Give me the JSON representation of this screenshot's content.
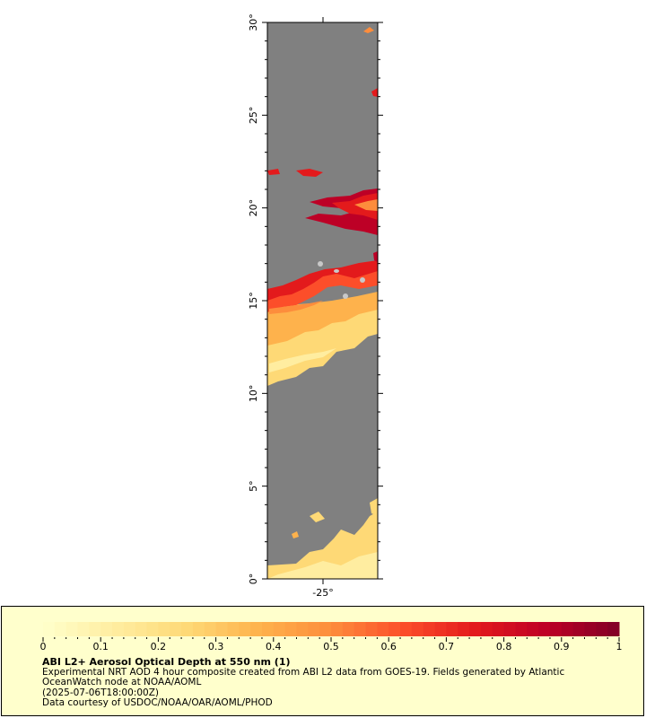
{
  "map": {
    "lat_labels": [
      "0°",
      "5°",
      "10°",
      "15°",
      "20°",
      "25°",
      "30°"
    ],
    "lon_label": "-25°",
    "land_mask_color": "#808080",
    "border_color": "#000000"
  },
  "colorbar": {
    "tick_labels": [
      "0",
      "0.1",
      "0.2",
      "0.3",
      "0.4",
      "0.5",
      "0.6",
      "0.7",
      "0.8",
      "0.9",
      "1"
    ],
    "range": [
      0,
      1
    ],
    "colors": [
      "#ffffcc",
      "#ffeda0",
      "#fed976",
      "#feb24c",
      "#fd8d3c",
      "#fc4e2a",
      "#e31a1c",
      "#bd0026",
      "#800026"
    ]
  },
  "credit": {
    "title": "ABI L2+ Aerosol Optical Depth at 550 nm (1)",
    "line1": "Experimental NRT AOD 4 hour composite created from ABI L2 data from GOES-19. Fields generated by Atlantic OceanWatch node at NOAA/AOML",
    "line2": "(2025-07-06T18:00:00Z)",
    "line3": "Data courtesy of USDOC/NOAA/OAR/AOML/PHOD"
  }
}
